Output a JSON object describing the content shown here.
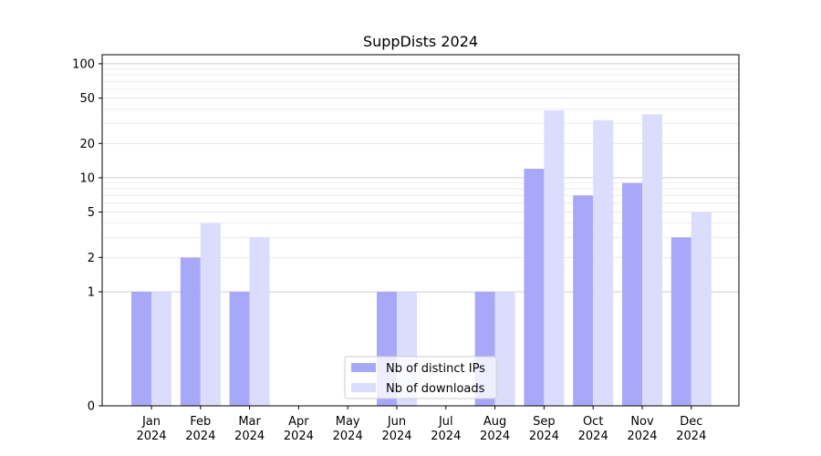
{
  "chart_data": {
    "type": "bar",
    "title": "SuppDists 2024",
    "xlabel": "",
    "ylabel": "",
    "yscale": "symlog",
    "y_ticks": [
      0,
      1,
      2,
      5,
      10,
      20,
      50,
      100
    ],
    "ylim": [
      0,
      120
    ],
    "categories": [
      {
        "month": "Jan",
        "year": "2024"
      },
      {
        "month": "Feb",
        "year": "2024"
      },
      {
        "month": "Mar",
        "year": "2024"
      },
      {
        "month": "Apr",
        "year": "2024"
      },
      {
        "month": "May",
        "year": "2024"
      },
      {
        "month": "Jun",
        "year": "2024"
      },
      {
        "month": "Jul",
        "year": "2024"
      },
      {
        "month": "Aug",
        "year": "2024"
      },
      {
        "month": "Sep",
        "year": "2024"
      },
      {
        "month": "Oct",
        "year": "2024"
      },
      {
        "month": "Nov",
        "year": "2024"
      },
      {
        "month": "Dec",
        "year": "2024"
      }
    ],
    "series": [
      {
        "name": "Nb of distinct IPs",
        "color": "#a8a8f8",
        "values": [
          1,
          2,
          1,
          0,
          0,
          1,
          0,
          1,
          12,
          7,
          9,
          3
        ]
      },
      {
        "name": "Nb of downloads",
        "color": "#dcdcfc",
        "values": [
          1,
          4,
          3,
          0,
          0,
          1,
          0,
          1,
          39,
          32,
          36,
          5
        ]
      }
    ],
    "grid": true,
    "legend_position": "lower-center"
  }
}
